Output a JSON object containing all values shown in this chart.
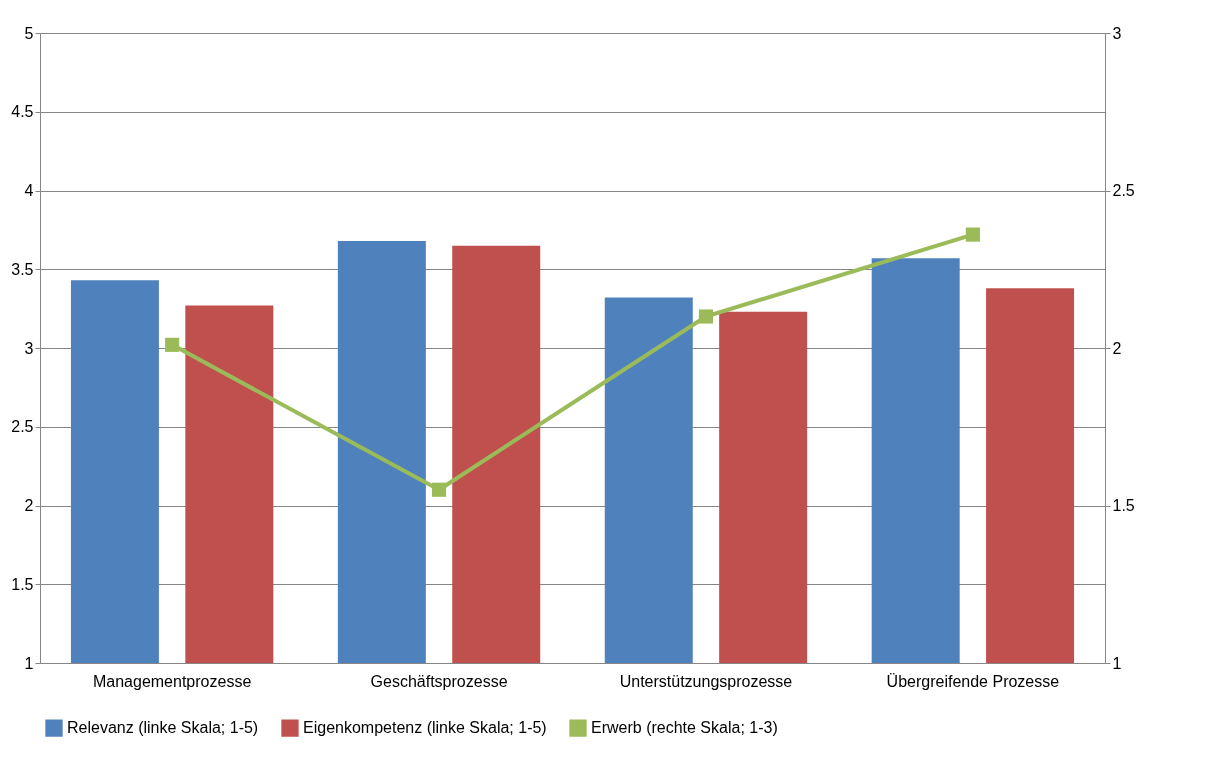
{
  "chart_data": {
    "type": "bar",
    "categories": [
      "Managementprozesse",
      "Geschäftsprozesse",
      "Unterstützungsprozesse",
      "Übergreifende Prozesse"
    ],
    "series": [
      {
        "name": "Relevanz (linke Skala; 1-5)",
        "color": "#4f81bd",
        "values": [
          3.43,
          3.68,
          3.32,
          3.57
        ]
      },
      {
        "name": "Eigenkompetenz (linke Skala; 1-5)",
        "color": "#c0504d",
        "values": [
          3.27,
          3.65,
          3.23,
          3.38
        ]
      },
      {
        "name": "Erwerb (rechte Skala; 1-3)",
        "color": "#9bbb59",
        "values": [
          2.01,
          1.55,
          2.1,
          2.36
        ],
        "type": "line",
        "axis": "y2",
        "marker": "square"
      }
    ],
    "ylim": [
      1,
      5
    ],
    "yticks": [
      1,
      1.5,
      2,
      2.5,
      3,
      3.5,
      4,
      4.5,
      5
    ],
    "y2lim": [
      1,
      3
    ],
    "y2ticks": [
      1,
      1.5,
      2,
      2.5,
      3
    ],
    "grid": "y",
    "legend": "bottom"
  }
}
